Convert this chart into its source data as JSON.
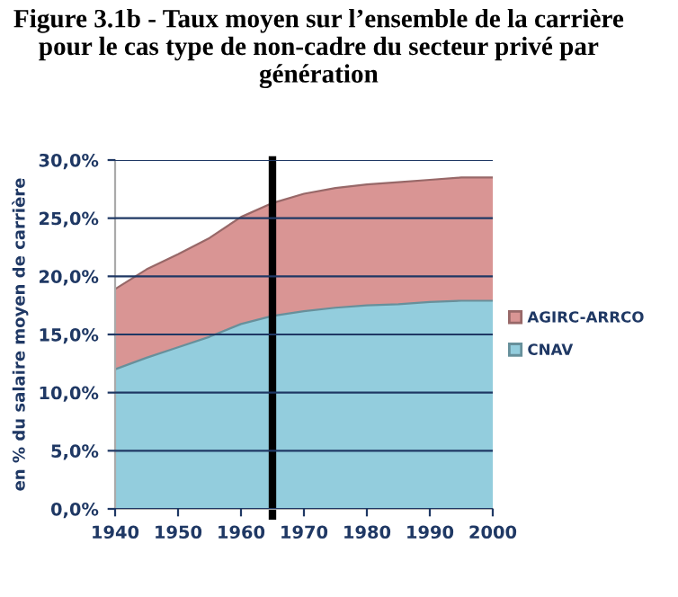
{
  "chart_data": {
    "type": "area",
    "stacked": true,
    "title": "Figure 3.1b - Taux moyen sur l’ensemble de la carrière pour le cas type de non-cadre du secteur privé par génération",
    "ylabel": "en % du salaire moyen de carrière",
    "x": [
      1940,
      1945,
      1950,
      1955,
      1960,
      1965,
      1970,
      1975,
      1980,
      1985,
      1990,
      1995,
      2000
    ],
    "series": [
      {
        "name": "CNAV",
        "color": "#93cddd",
        "values": [
          12.0,
          13.0,
          13.9,
          14.8,
          15.9,
          16.6,
          17.0,
          17.3,
          17.5,
          17.6,
          17.8,
          17.9,
          17.9
        ]
      },
      {
        "name": "AGIRC-ARRCO",
        "color": "#d99594",
        "values": [
          6.9,
          7.6,
          8.0,
          8.5,
          9.2,
          9.7,
          10.1,
          10.3,
          10.4,
          10.5,
          10.5,
          10.6,
          10.6
        ]
      }
    ],
    "xlim": [
      1940,
      2000
    ],
    "xticks": [
      1940,
      1950,
      1960,
      1970,
      1980,
      1990,
      2000
    ],
    "ylim": [
      0,
      30
    ],
    "yticks": [
      {
        "value": 0,
        "label": "0,0%"
      },
      {
        "value": 5,
        "label": "5,0%"
      },
      {
        "value": 10,
        "label": "10,0%"
      },
      {
        "value": 15,
        "label": "15,0%"
      },
      {
        "value": 20,
        "label": "20,0%"
      },
      {
        "value": 25,
        "label": "25,0%"
      },
      {
        "value": 30,
        "label": "30,0%"
      }
    ],
    "grid": "y",
    "legend": "right",
    "ref_lines": [
      {
        "axis": "x",
        "value": 1965,
        "color": "#000000"
      }
    ]
  }
}
